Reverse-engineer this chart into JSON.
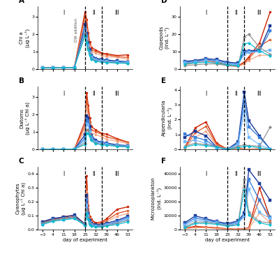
{
  "x_days": [
    -3,
    4,
    11,
    18,
    25,
    26,
    27,
    28,
    29,
    32,
    36,
    39,
    46,
    53
  ],
  "x_ticks": [
    -3,
    4,
    11,
    18,
    25,
    32,
    39,
    46,
    53
  ],
  "vline1": 25,
  "vline2": 36,
  "panel_A": {
    "ylabel": "Chl a\n(μg L⁻¹)",
    "ylim": [
      0,
      3.6
    ],
    "yticks": [
      0,
      1,
      2,
      3
    ],
    "dw_label": true,
    "lines": [
      {
        "color": "#cc2200",
        "marker": "o",
        "lw": 1.0,
        "data": [
          0.07,
          0.07,
          0.08,
          0.09,
          3.3,
          2.85,
          2.1,
          1.55,
          1.25,
          1.1,
          0.92,
          0.88,
          0.78,
          0.82
        ]
      },
      {
        "color": "#e06030",
        "marker": "o",
        "lw": 1.0,
        "data": [
          0.07,
          0.07,
          0.08,
          0.09,
          3.05,
          2.55,
          1.85,
          1.42,
          1.12,
          1.02,
          0.87,
          0.82,
          0.72,
          0.67
        ]
      },
      {
        "color": "#f0a080",
        "marker": "o",
        "lw": 0.8,
        "data": [
          0.07,
          0.07,
          0.08,
          0.09,
          2.82,
          2.25,
          1.65,
          1.32,
          1.02,
          0.92,
          0.77,
          0.72,
          0.67,
          0.57
        ]
      },
      {
        "color": "#1a3a9a",
        "marker": "s",
        "lw": 1.0,
        "data": [
          0.07,
          0.07,
          0.08,
          0.09,
          2.55,
          2.05,
          1.52,
          1.12,
          0.82,
          0.62,
          0.57,
          0.52,
          0.47,
          0.42
        ]
      },
      {
        "color": "#3a80d9",
        "marker": "s",
        "lw": 1.0,
        "data": [
          0.07,
          0.07,
          0.08,
          0.09,
          2.35,
          1.92,
          1.42,
          1.02,
          0.77,
          0.57,
          0.52,
          0.47,
          0.42,
          0.4
        ]
      },
      {
        "color": "#70b8ff",
        "marker": "s",
        "lw": 0.8,
        "data": [
          0.07,
          0.07,
          0.08,
          0.09,
          2.15,
          1.72,
          1.32,
          0.92,
          0.67,
          0.52,
          0.47,
          0.44,
          0.4,
          0.37
        ]
      },
      {
        "color": "#888888",
        "marker": "D",
        "lw": 0.8,
        "data": [
          0.07,
          0.07,
          0.08,
          0.09,
          2.05,
          1.62,
          1.22,
          0.87,
          0.62,
          0.47,
          0.42,
          0.4,
          0.37,
          0.34
        ]
      },
      {
        "color": "#00bcd4",
        "marker": "D",
        "lw": 0.8,
        "data": [
          0.07,
          0.07,
          0.08,
          0.09,
          1.92,
          1.52,
          1.12,
          0.82,
          0.57,
          0.44,
          0.4,
          0.37,
          0.35,
          0.32
        ]
      }
    ]
  },
  "panel_B": {
    "ylabel": "Diatoms\n(μg L⁻¹ Chl a)",
    "ylim": [
      0,
      3.6
    ],
    "yticks": [
      0,
      1,
      2,
      3
    ],
    "dw_label": false,
    "lines": [
      {
        "color": "#cc2200",
        "marker": "o",
        "lw": 1.0,
        "data": [
          0.02,
          0.02,
          0.02,
          0.02,
          1.6,
          3.25,
          2.55,
          1.82,
          1.32,
          1.12,
          0.92,
          0.88,
          0.62,
          0.42
        ]
      },
      {
        "color": "#e06030",
        "marker": "o",
        "lw": 1.0,
        "data": [
          0.02,
          0.02,
          0.02,
          0.02,
          1.35,
          2.82,
          2.22,
          1.62,
          1.12,
          1.02,
          0.87,
          0.72,
          0.57,
          0.4
        ]
      },
      {
        "color": "#f0a080",
        "marker": "o",
        "lw": 0.8,
        "data": [
          0.02,
          0.02,
          0.02,
          0.02,
          1.1,
          2.5,
          1.92,
          1.42,
          0.92,
          0.87,
          0.72,
          0.57,
          0.47,
          0.34
        ]
      },
      {
        "color": "#1a3a9a",
        "marker": "s",
        "lw": 1.0,
        "data": [
          0.02,
          0.02,
          0.02,
          0.02,
          0.85,
          1.95,
          1.82,
          1.32,
          0.82,
          0.52,
          0.42,
          0.37,
          0.27,
          0.22
        ]
      },
      {
        "color": "#3a80d9",
        "marker": "s",
        "lw": 1.0,
        "data": [
          0.02,
          0.02,
          0.02,
          0.02,
          0.65,
          1.75,
          1.62,
          1.12,
          0.72,
          0.47,
          0.4,
          0.32,
          0.24,
          0.2
        ]
      },
      {
        "color": "#70b8ff",
        "marker": "s",
        "lw": 0.8,
        "data": [
          0.02,
          0.02,
          0.02,
          0.02,
          0.5,
          1.45,
          1.42,
          1.02,
          0.62,
          0.42,
          0.34,
          0.3,
          0.22,
          0.18
        ]
      },
      {
        "color": "#888888",
        "marker": "D",
        "lw": 0.8,
        "data": [
          0.02,
          0.02,
          0.02,
          0.02,
          0.38,
          1.15,
          1.12,
          0.87,
          0.57,
          0.37,
          0.3,
          0.27,
          0.2,
          0.16
        ]
      },
      {
        "color": "#00bcd4",
        "marker": "D",
        "lw": 0.8,
        "data": [
          0.02,
          0.02,
          0.02,
          0.02,
          0.28,
          0.95,
          0.92,
          0.77,
          0.52,
          0.32,
          0.27,
          0.24,
          0.18,
          0.14
        ]
      }
    ]
  },
  "panel_C": {
    "ylabel": "Cyanophytes\n(μg L⁻¹ Chl a)",
    "ylim": [
      0,
      0.45
    ],
    "yticks": [
      0.0,
      0.1,
      0.2,
      0.3,
      0.4
    ],
    "dw_label": false,
    "lines": [
      {
        "color": "#cc2200",
        "marker": "o",
        "lw": 1.0,
        "data": [
          0.06,
          0.075,
          0.095,
          0.105,
          0.042,
          0.385,
          0.175,
          0.095,
          0.075,
          0.05,
          0.058,
          0.08,
          0.148,
          0.165
        ]
      },
      {
        "color": "#e06030",
        "marker": "o",
        "lw": 1.0,
        "data": [
          0.055,
          0.068,
          0.085,
          0.095,
          0.038,
          0.315,
          0.148,
          0.085,
          0.065,
          0.04,
          0.048,
          0.068,
          0.118,
          0.138
        ]
      },
      {
        "color": "#f0a080",
        "marker": "o",
        "lw": 0.8,
        "data": [
          0.048,
          0.062,
          0.075,
          0.085,
          0.035,
          0.275,
          0.128,
          0.078,
          0.058,
          0.038,
          0.04,
          0.058,
          0.098,
          0.118
        ]
      },
      {
        "color": "#1a3a9a",
        "marker": "s",
        "lw": 1.0,
        "data": [
          0.058,
          0.082,
          0.092,
          0.105,
          0.04,
          0.245,
          0.118,
          0.068,
          0.048,
          0.038,
          0.038,
          0.048,
          0.068,
          0.098
        ]
      },
      {
        "color": "#3a80d9",
        "marker": "s",
        "lw": 1.0,
        "data": [
          0.048,
          0.072,
          0.082,
          0.092,
          0.038,
          0.218,
          0.108,
          0.058,
          0.038,
          0.028,
          0.03,
          0.038,
          0.058,
          0.088
        ]
      },
      {
        "color": "#70b8ff",
        "marker": "s",
        "lw": 0.8,
        "data": [
          0.038,
          0.062,
          0.072,
          0.082,
          0.032,
          0.178,
          0.098,
          0.048,
          0.038,
          0.025,
          0.028,
          0.038,
          0.048,
          0.078
        ]
      },
      {
        "color": "#888888",
        "marker": "D",
        "lw": 0.8,
        "data": [
          0.048,
          0.072,
          0.082,
          0.092,
          0.038,
          0.148,
          0.088,
          0.048,
          0.03,
          0.022,
          0.028,
          0.03,
          0.048,
          0.068
        ]
      },
      {
        "color": "#00bcd4",
        "marker": "D",
        "lw": 0.8,
        "data": [
          0.038,
          0.062,
          0.072,
          0.082,
          0.032,
          0.118,
          0.078,
          0.038,
          0.028,
          0.02,
          0.02,
          0.028,
          0.038,
          0.058
        ]
      }
    ]
  },
  "panel_D": {
    "ylabel": "Copepods\n(Ind. L⁻¹)",
    "ylim": [
      0,
      36
    ],
    "yticks": [
      0,
      10,
      20,
      30
    ],
    "dw_label": false,
    "x_days": [
      -3,
      4,
      11,
      18,
      25,
      32,
      36,
      39,
      46,
      53
    ],
    "lines": [
      {
        "color": "#cc2200",
        "marker": "o",
        "lw": 1.0,
        "data": [
          3.5,
          4.5,
          5.5,
          4.0,
          2.5,
          2.0,
          4.0,
          7.0,
          15.0,
          33.0
        ]
      },
      {
        "color": "#e06030",
        "marker": "o",
        "lw": 1.0,
        "data": [
          3.0,
          4.0,
          5.0,
          3.8,
          2.2,
          1.8,
          3.5,
          6.0,
          13.0,
          17.0
        ]
      },
      {
        "color": "#f0a080",
        "marker": "o",
        "lw": 0.8,
        "data": [
          2.5,
          3.5,
          4.5,
          3.5,
          2.0,
          1.5,
          3.0,
          5.0,
          8.0,
          8.0
        ]
      },
      {
        "color": "#1a3a9a",
        "marker": "s",
        "lw": 1.0,
        "data": [
          4.5,
          5.0,
          6.0,
          5.5,
          4.0,
          3.5,
          10.5,
          10.5,
          11.0,
          25.0
        ]
      },
      {
        "color": "#3a80d9",
        "marker": "s",
        "lw": 1.0,
        "data": [
          4.0,
          4.5,
          5.5,
          5.0,
          3.5,
          3.0,
          9.5,
          10.0,
          10.5,
          22.0
        ]
      },
      {
        "color": "#70b8ff",
        "marker": "s",
        "lw": 0.8,
        "data": [
          3.5,
          4.0,
          5.0,
          4.5,
          3.0,
          2.5,
          8.5,
          9.5,
          10.0,
          11.0
        ]
      },
      {
        "color": "#888888",
        "marker": "D",
        "lw": 0.8,
        "data": [
          2.0,
          2.5,
          3.0,
          3.0,
          2.0,
          1.5,
          18.5,
          20.0,
          12.5,
          8.5
        ]
      },
      {
        "color": "#00bcd4",
        "marker": "D",
        "lw": 0.8,
        "data": [
          3.0,
          3.5,
          4.0,
          3.5,
          2.5,
          2.0,
          14.5,
          15.0,
          10.5,
          7.5
        ]
      }
    ]
  },
  "panel_E": {
    "ylabel": "Appendicularia\n(Ind. L⁻¹)",
    "ylim": [
      0,
      4.2
    ],
    "yticks": [
      0,
      1,
      2,
      3,
      4
    ],
    "dw_label": false,
    "x_days": [
      -3,
      4,
      11,
      18,
      25,
      32,
      36,
      39,
      46,
      53
    ],
    "lines": [
      {
        "color": "#cc2200",
        "marker": "o",
        "lw": 1.0,
        "data": [
          0.1,
          1.45,
          1.85,
          0.42,
          0.02,
          0.12,
          0.02,
          0.02,
          0.05,
          0.02
        ]
      },
      {
        "color": "#e06030",
        "marker": "o",
        "lw": 1.0,
        "data": [
          0.1,
          1.12,
          1.55,
          0.32,
          0.02,
          0.08,
          0.02,
          0.02,
          0.02,
          0.02
        ]
      },
      {
        "color": "#f0a080",
        "marker": "o",
        "lw": 0.8,
        "data": [
          0.08,
          0.82,
          1.22,
          0.25,
          0.02,
          0.05,
          0.02,
          0.02,
          0.02,
          0.02
        ]
      },
      {
        "color": "#1a3a9a",
        "marker": "s",
        "lw": 1.0,
        "data": [
          0.82,
          1.22,
          0.92,
          0.15,
          0.02,
          0.52,
          3.85,
          1.92,
          0.92,
          0.02
        ]
      },
      {
        "color": "#3a80d9",
        "marker": "s",
        "lw": 1.0,
        "data": [
          1.02,
          0.82,
          0.62,
          0.12,
          0.02,
          0.42,
          3.25,
          1.52,
          0.82,
          0.02
        ]
      },
      {
        "color": "#70b8ff",
        "marker": "s",
        "lw": 0.8,
        "data": [
          0.52,
          0.62,
          0.42,
          0.12,
          0.02,
          0.32,
          2.55,
          0.82,
          0.32,
          0.02
        ]
      },
      {
        "color": "#888888",
        "marker": "D",
        "lw": 0.8,
        "data": [
          0.22,
          0.42,
          0.32,
          0.22,
          0.02,
          0.22,
          0.32,
          0.26,
          0.22,
          1.52
        ]
      },
      {
        "color": "#00bcd4",
        "marker": "D",
        "lw": 0.8,
        "data": [
          0.15,
          0.32,
          0.26,
          0.15,
          0.02,
          0.12,
          0.22,
          0.22,
          0.12,
          0.02
        ]
      }
    ]
  },
  "panel_F": {
    "ylabel": "Microzooplankton\n(Ind. L⁻¹)",
    "ylim": [
      0,
      45000
    ],
    "yticks": [
      0,
      10000,
      20000,
      30000,
      40000
    ],
    "dw_label": false,
    "x_days": [
      -3,
      4,
      11,
      18,
      25,
      32,
      36,
      39,
      46,
      53
    ],
    "lines": [
      {
        "color": "#cc2200",
        "marker": "o",
        "lw": 1.0,
        "data": [
          1200,
          2500,
          2000,
          1500,
          800,
          500,
          800,
          1500,
          30000,
          8500
        ]
      },
      {
        "color": "#e06030",
        "marker": "o",
        "lw": 1.0,
        "data": [
          1000,
          2000,
          1800,
          1200,
          600,
          400,
          600,
          1200,
          22000,
          6500
        ]
      },
      {
        "color": "#f0a080",
        "marker": "o",
        "lw": 0.8,
        "data": [
          800,
          1500,
          1500,
          1000,
          500,
          300,
          500,
          1000,
          12000,
          5000
        ]
      },
      {
        "color": "#1a3a9a",
        "marker": "s",
        "lw": 1.0,
        "data": [
          5000,
          10000,
          8000,
          6000,
          4500,
          6500,
          12000,
          43000,
          33000,
          21000
        ]
      },
      {
        "color": "#3a80d9",
        "marker": "s",
        "lw": 1.0,
        "data": [
          4000,
          8500,
          7000,
          5500,
          3800,
          5500,
          10500,
          36000,
          21000,
          9000
        ]
      },
      {
        "color": "#70b8ff",
        "marker": "s",
        "lw": 0.8,
        "data": [
          3000,
          7000,
          6000,
          5000,
          3200,
          4800,
          9500,
          29000,
          12500,
          8000
        ]
      },
      {
        "color": "#888888",
        "marker": "D",
        "lw": 0.8,
        "data": [
          2000,
          5500,
          5500,
          4500,
          3000,
          4000,
          36000,
          12500,
          6000,
          5000
        ]
      },
      {
        "color": "#00bcd4",
        "marker": "D",
        "lw": 0.8,
        "data": [
          1500,
          4500,
          4500,
          4000,
          2500,
          3500,
          28500,
          10500,
          5000,
          3500
        ]
      }
    ]
  }
}
